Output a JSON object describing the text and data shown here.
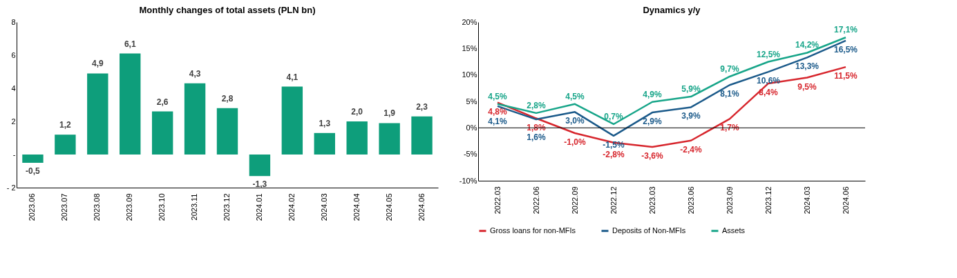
{
  "chart_data": [
    {
      "type": "bar",
      "title": "Monthly changes of total assets (PLN bn)",
      "categories": [
        "2023.06",
        "2023.07",
        "2023.08",
        "2023.09",
        "2023.10",
        "2023.11",
        "2023.12",
        "2024.01",
        "2024.02",
        "2024.03",
        "2024.04",
        "2024.05",
        "2024.06"
      ],
      "values": [
        -0.5,
        1.2,
        4.9,
        6.1,
        2.6,
        4.3,
        2.8,
        -1.3,
        4.1,
        1.3,
        2.0,
        1.9,
        2.3
      ],
      "value_labels": [
        "-0,5",
        "1,2",
        "4,9",
        "6,1",
        "2,6",
        "4,3",
        "2,8",
        "-1,3",
        "4,1",
        "1,3",
        "2,0",
        "1,9",
        "2,3"
      ],
      "color": "#0e9e7b",
      "ylim": [
        -2,
        8
      ],
      "yticks": [
        {
          "value": -2,
          "label": "- 2"
        },
        {
          "value": 0,
          "label": "-"
        },
        2,
        4,
        6,
        8
      ]
    },
    {
      "type": "line",
      "title": "Dynamics y/y",
      "categories": [
        "2022.03",
        "2022.06",
        "2022.09",
        "2022.12",
        "2023.03",
        "2023.06",
        "2023.09",
        "2023.12",
        "2024.03",
        "2024.06"
      ],
      "series": [
        {
          "name": "Gross loans for non-MFIs",
          "color": "#d7262d",
          "values": [
            4.8,
            1.8,
            -1.0,
            -2.8,
            -3.6,
            -2.4,
            1.7,
            8.4,
            9.5,
            11.5
          ],
          "value_labels": [
            "4,8%",
            "1,8%",
            "-1,0%",
            "-2,8%",
            "-3,6%",
            "-2,4%",
            "1,7%",
            "8,4%",
            "9,5%",
            "11,5%"
          ]
        },
        {
          "name": "Deposits of Non-MFIs",
          "color": "#1b5a8a",
          "values": [
            4.1,
            1.6,
            3.0,
            -1.5,
            2.9,
            3.9,
            8.1,
            10.6,
            13.3,
            16.5
          ],
          "value_labels": [
            "4,1%",
            "1,6%",
            "3,0%",
            "-1,5%",
            "2,9%",
            "3,9%",
            "8,1%",
            "10,6%",
            "13,3%",
            "16,5%"
          ]
        },
        {
          "name": "Assets",
          "color": "#17a589",
          "values": [
            4.5,
            2.8,
            4.5,
            0.7,
            4.9,
            5.9,
            9.7,
            12.5,
            14.2,
            17.1
          ],
          "value_labels": [
            "4,5%",
            "2,8%",
            "4,5%",
            "0,7%",
            "4,9%",
            "5,9%",
            "9,7%",
            "12,5%",
            "14,2%",
            "17,1%"
          ]
        }
      ],
      "ylim": [
        -10,
        20
      ],
      "yticks": [
        {
          "value": -10,
          "label": "-10%"
        },
        {
          "value": -5,
          "label": "-5%"
        },
        {
          "value": 0,
          "label": "0%"
        },
        {
          "value": 5,
          "label": "5%"
        },
        {
          "value": 10,
          "label": "10%"
        },
        {
          "value": 15,
          "label": "15%"
        },
        {
          "value": 20,
          "label": "20%"
        }
      ],
      "ref_lines": [
        {
          "axis": "y",
          "value": 0
        }
      ],
      "legend": "bottom"
    }
  ]
}
